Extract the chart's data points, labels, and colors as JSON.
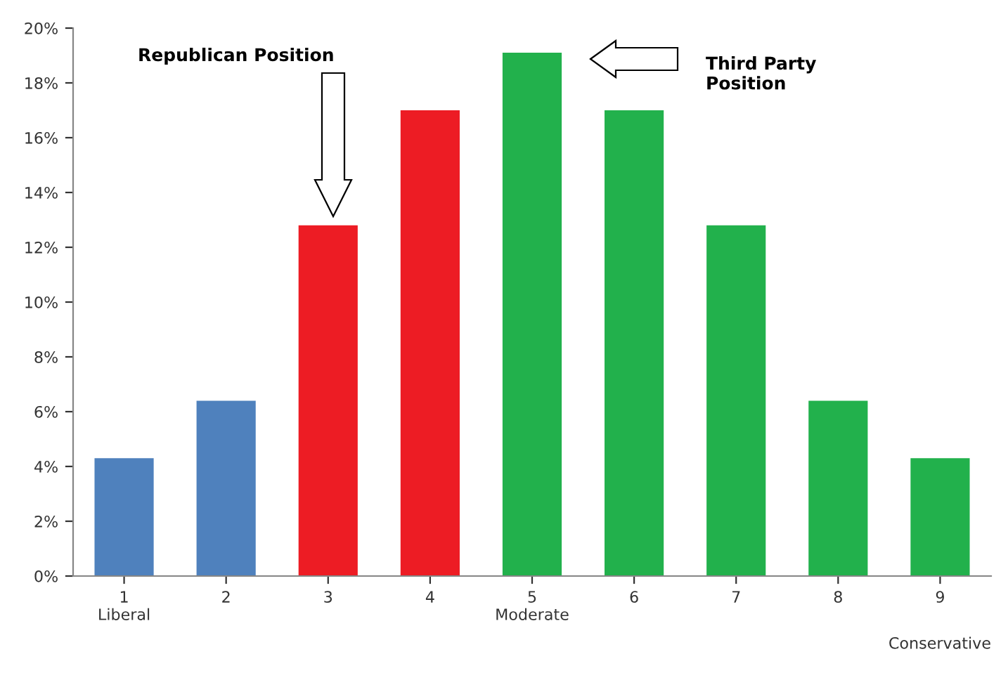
{
  "chart_data": {
    "type": "bar",
    "categories": [
      "1\nLiberal",
      "2",
      "3",
      "4",
      "5\nModerate",
      "6",
      "7",
      "8",
      "9"
    ],
    "values": [
      4.3,
      6.4,
      12.8,
      17.0,
      19.1,
      17.0,
      12.8,
      6.4,
      4.3
    ],
    "colors": [
      "#4f81bd",
      "#4f81bd",
      "#ed1c24",
      "#ed1c24",
      "#22b14c",
      "#22b14c",
      "#22b14c",
      "#22b14c",
      "#22b14c"
    ],
    "ylim": [
      0,
      20
    ],
    "yticks": [
      {
        "value": 0,
        "label": "0%"
      },
      {
        "value": 2,
        "label": "2%"
      },
      {
        "value": 4,
        "label": "4%"
      },
      {
        "value": 6,
        "label": "6%"
      },
      {
        "value": 8,
        "label": "8%"
      },
      {
        "value": 10,
        "label": "10%"
      },
      {
        "value": 12,
        "label": "12%"
      },
      {
        "value": 14,
        "label": "14%"
      },
      {
        "value": 16,
        "label": "16%"
      },
      {
        "value": 18,
        "label": "18%"
      },
      {
        "value": 20,
        "label": "20%"
      }
    ],
    "annotations": [
      "Republican Position",
      "Third Party\nPosition",
      "Conservative"
    ],
    "grid": false,
    "legend": false
  }
}
